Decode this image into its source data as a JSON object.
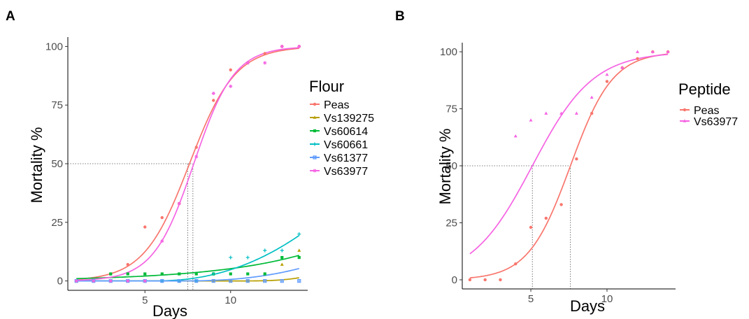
{
  "chart_data": [
    {
      "panel": "A",
      "type": "scatter",
      "xlabel": "Days",
      "ylabel": "Mortality %",
      "xlim": [
        0.5,
        14.5
      ],
      "ylim": [
        -4,
        104
      ],
      "xticks": [
        5,
        10
      ],
      "yticks": [
        0,
        25,
        50,
        75,
        100
      ],
      "grid": false,
      "legend": {
        "title": "Flour",
        "position": "right"
      },
      "reference_lines": {
        "y": 50,
        "x": [
          7.5,
          7.8
        ]
      },
      "series": [
        {
          "name": "Peas",
          "color": "#F8766D",
          "marker": "circle",
          "x": [
            1,
            2,
            3,
            4,
            5,
            6,
            7,
            8,
            9,
            10,
            11,
            12,
            13,
            14
          ],
          "y": [
            0,
            0,
            3,
            7,
            23,
            27,
            33,
            57,
            77,
            90,
            93,
            97,
            100,
            100
          ],
          "fit": {
            "midpoint": 7.6,
            "slope": 0.75
          }
        },
        {
          "name": "Vs139275",
          "color": "#B79F00",
          "marker": "triangle",
          "x": [
            1,
            2,
            3,
            4,
            5,
            6,
            7,
            8,
            9,
            10,
            11,
            12,
            13,
            14
          ],
          "y": [
            0,
            0,
            0,
            0,
            0,
            0,
            0,
            0,
            0,
            0,
            0,
            3,
            7,
            13
          ],
          "fit": {
            "start": 10.5,
            "a": 0.028,
            "p": 3.1
          }
        },
        {
          "name": "Vs60614",
          "color": "#00BA38",
          "marker": "square",
          "x": [
            1,
            2,
            3,
            4,
            5,
            6,
            7,
            8,
            9,
            10,
            11,
            12,
            13,
            14
          ],
          "y": [
            0,
            0,
            3,
            3,
            3,
            3,
            3,
            3,
            3,
            3,
            3,
            3,
            10,
            10
          ],
          "fit": {
            "y0": 1.0,
            "rate": 0.184
          }
        },
        {
          "name": "Vs60661",
          "color": "#00BFC4",
          "marker": "plus",
          "x": [
            1,
            2,
            3,
            4,
            5,
            6,
            7,
            8,
            9,
            10,
            11,
            12,
            13,
            14
          ],
          "y": [
            0,
            0,
            0,
            0,
            0,
            0,
            0,
            0,
            3,
            10,
            10,
            13,
            13,
            20
          ],
          "fit": {
            "start": 5.5,
            "a": 0.175,
            "p": 2.2
          }
        },
        {
          "name": "Vs61377",
          "color": "#619CFF",
          "marker": "boxcross",
          "x": [
            1,
            2,
            3,
            4,
            5,
            6,
            7,
            8,
            9,
            10,
            11,
            12,
            13,
            14
          ],
          "y": [
            0,
            0,
            0,
            0,
            0,
            0,
            0,
            0,
            0,
            0,
            0,
            0,
            0,
            0
          ],
          "fit": {
            "start": 7.0,
            "a": 0.045,
            "p": 2.45
          }
        },
        {
          "name": "Vs63977",
          "color": "#F564E3",
          "marker": "asterisk",
          "x": [
            1,
            2,
            3,
            4,
            5,
            6,
            7,
            8,
            9,
            10,
            11,
            12,
            13,
            14
          ],
          "y": [
            0,
            0,
            0,
            0,
            0,
            17,
            33,
            53,
            80,
            83,
            93,
            93,
            100,
            100
          ],
          "fit": {
            "midpoint": 7.85,
            "slope": 0.85
          }
        }
      ]
    },
    {
      "panel": "B",
      "type": "scatter",
      "xlabel": "Days",
      "ylabel": "Mortality %",
      "xlim": [
        0.5,
        14.5
      ],
      "ylim": [
        -4,
        104
      ],
      "xticks": [
        5,
        10
      ],
      "yticks": [
        0,
        25,
        50,
        75,
        100
      ],
      "grid": false,
      "legend": {
        "title": "Peptide",
        "position": "right"
      },
      "reference_lines": {
        "y": 50,
        "x": [
          5.1,
          7.6
        ]
      },
      "series": [
        {
          "name": "Peas",
          "color": "#F8766D",
          "marker": "circle",
          "x": [
            1,
            2,
            3,
            4,
            5,
            6,
            7,
            8,
            9,
            10,
            11,
            12,
            13,
            14
          ],
          "y": [
            0,
            0,
            0,
            7,
            23,
            27,
            33,
            53,
            73,
            87,
            93,
            97,
            100,
            100
          ],
          "fit": {
            "midpoint": 7.6,
            "slope": 0.72
          }
        },
        {
          "name": "Vs63977",
          "color": "#F564E3",
          "marker": "triangle",
          "x": [
            4,
            5,
            6,
            7,
            8,
            9,
            10,
            11,
            12,
            13,
            14
          ],
          "y": [
            63,
            70,
            73,
            73,
            73,
            80,
            90,
            93,
            100,
            100,
            100
          ],
          "fit": {
            "midpoint": 5.1,
            "slope": 0.5
          }
        }
      ]
    }
  ]
}
